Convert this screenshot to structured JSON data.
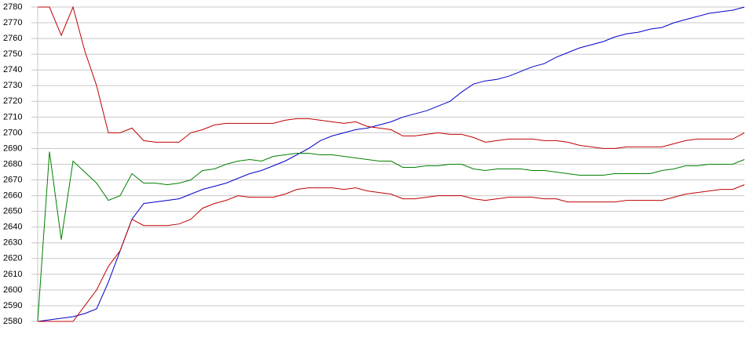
{
  "chart_data": {
    "type": "line",
    "categories": [
      null,
      null,
      null,
      null,
      null,
      null,
      null,
      null,
      null,
      null,
      null,
      null,
      null,
      null,
      null,
      null,
      null,
      null,
      null,
      null,
      null,
      null,
      null,
      null,
      null,
      null,
      null,
      null,
      null,
      null,
      null,
      null,
      null,
      null,
      null,
      null,
      null,
      null,
      null,
      null,
      null,
      null,
      null,
      null,
      null,
      null,
      null,
      null,
      null,
      null,
      null,
      null,
      null,
      null,
      null,
      null,
      null,
      null,
      null,
      null,
      null
    ],
    "series": [
      {
        "color": "#0000c8",
        "values": [
          2580,
          2581,
          2582,
          2583,
          2585,
          2588,
          2605,
          2625,
          2645,
          2655,
          2656,
          2657,
          2658,
          2661,
          2664,
          2666,
          2668,
          2671,
          2674,
          2676,
          2679,
          2682,
          2686,
          2690,
          2695,
          2698,
          2700,
          2702,
          2703,
          2705,
          2707,
          2710,
          2712,
          2714,
          2717,
          2720,
          2726,
          2731,
          2733,
          2734,
          2736,
          2739,
          2742,
          2744,
          2748,
          2751,
          2754,
          2756,
          2758,
          2761,
          2763,
          2764,
          2766,
          2767,
          2770,
          2772,
          2774,
          2776,
          2777,
          2778,
          2780
        ]
      },
      {
        "color": "#c00000",
        "values": [
          2780,
          2780,
          2762,
          2780,
          2752,
          2730,
          2700,
          2700,
          2703,
          2695,
          2694,
          2694,
          2694,
          2700,
          2702,
          2705,
          2706,
          2706,
          2706,
          2706,
          2706,
          2708,
          2709,
          2709,
          2708,
          2707,
          2706,
          2707,
          2704,
          2703,
          2702,
          2698,
          2698,
          2699,
          2700,
          2699,
          2699,
          2697,
          2694,
          2695,
          2696,
          2696,
          2696,
          2695,
          2695,
          2694,
          2692,
          2691,
          2690,
          2690,
          2691,
          2691,
          2691,
          2691,
          2693,
          2695,
          2696,
          2696,
          2696,
          2696,
          2700
        ]
      },
      {
        "color": "#008000",
        "values": [
          2580,
          2688,
          2632,
          2682,
          2675,
          2668,
          2657,
          2660,
          2674,
          2668,
          2668,
          2667,
          2668,
          2670,
          2676,
          2677,
          2680,
          2682,
          2683,
          2682,
          2685,
          2686,
          2687,
          2687,
          2686,
          2686,
          2685,
          2684,
          2683,
          2682,
          2682,
          2678,
          2678,
          2679,
          2679,
          2680,
          2680,
          2677,
          2676,
          2677,
          2677,
          2677,
          2676,
          2676,
          2675,
          2674,
          2673,
          2673,
          2673,
          2674,
          2674,
          2674,
          2674,
          2676,
          2677,
          2679,
          2679,
          2680,
          2680,
          2680,
          2683
        ]
      },
      {
        "color": "#c00000",
        "values": [
          2580,
          2580,
          2580,
          2580,
          2590,
          2600,
          2615,
          2625,
          2645,
          2641,
          2641,
          2641,
          2642,
          2645,
          2652,
          2655,
          2657,
          2660,
          2659,
          2659,
          2659,
          2661,
          2664,
          2665,
          2665,
          2665,
          2664,
          2665,
          2663,
          2662,
          2661,
          2658,
          2658,
          2659,
          2660,
          2660,
          2660,
          2658,
          2657,
          2658,
          2659,
          2659,
          2659,
          2658,
          2658,
          2656,
          2656,
          2656,
          2656,
          2656,
          2657,
          2657,
          2657,
          2657,
          2659,
          2661,
          2662,
          2663,
          2664,
          2664,
          2667
        ]
      }
    ],
    "ylim": [
      2580,
      2780
    ],
    "yticks": [
      2580,
      2590,
      2600,
      2610,
      2620,
      2630,
      2640,
      2650,
      2660,
      2670,
      2680,
      2690,
      2700,
      2710,
      2720,
      2730,
      2740,
      2750,
      2760,
      2770,
      2780
    ],
    "grid": true
  }
}
